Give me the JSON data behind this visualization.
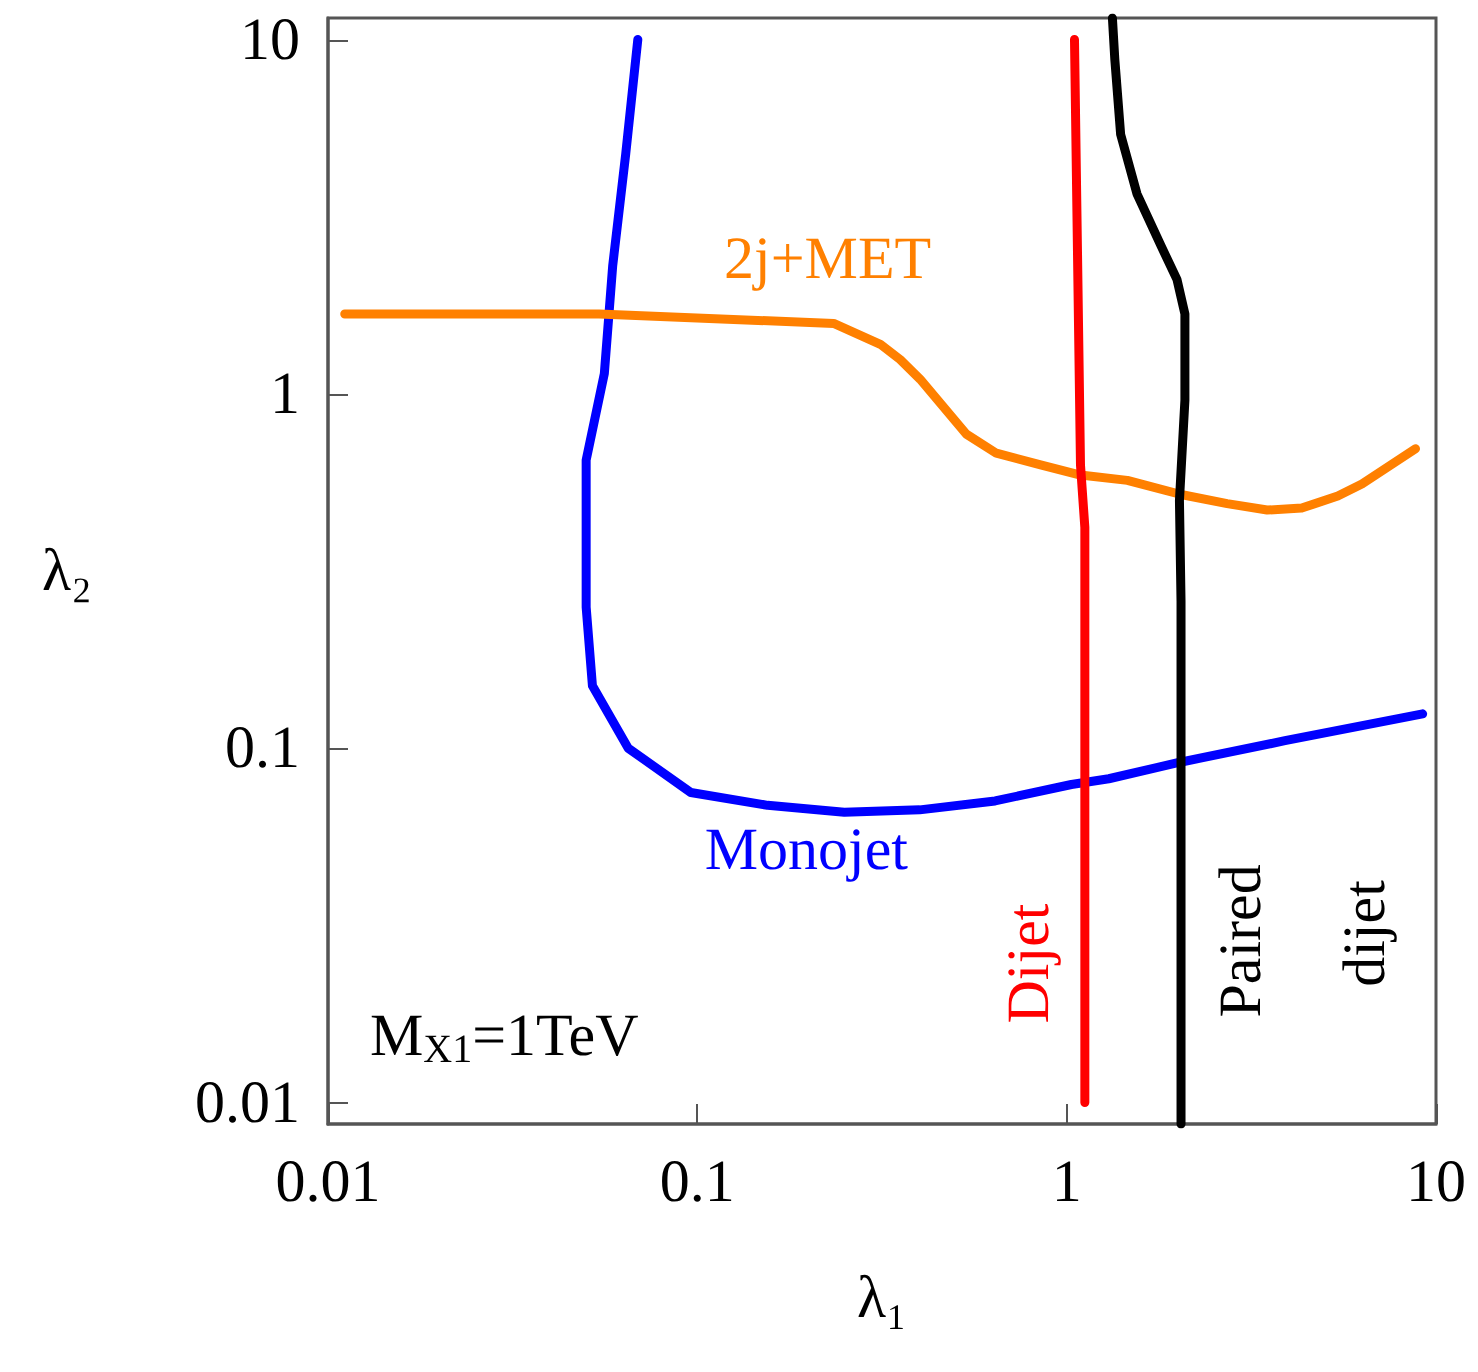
{
  "chart_data": {
    "type": "line",
    "xlabel": "λ₁",
    "ylabel": "λ₂",
    "log": "xy",
    "xlim": [
      0.01,
      10
    ],
    "ylim": [
      0.0087,
      11.5
    ],
    "xticks": [
      0.01,
      0.1,
      1,
      10
    ],
    "yticks": [
      0.01,
      0.1,
      1,
      10
    ],
    "grid": false,
    "legend": false,
    "marker": "none",
    "line_style": "solid",
    "annotations": [
      "M$_{X1}$=1TeV"
    ],
    "series": [
      {
        "name": "Monojet",
        "color": "#0000ff",
        "x": [
          0.069,
          0.064,
          0.059,
          0.056,
          0.05,
          0.05,
          0.05,
          0.052,
          0.065,
          0.096,
          0.155,
          0.25,
          0.4,
          0.64,
          1.03,
          1.3,
          2.0,
          3.9,
          9.2
        ],
        "values": [
          10,
          4.76,
          2.3,
          1.14,
          0.65,
          0.4,
          0.25,
          0.15,
          0.1,
          0.075,
          0.069,
          0.066,
          0.067,
          0.071,
          0.079,
          0.082,
          0.091,
          0.105,
          0.125
        ]
      },
      {
        "name": "2j+MET",
        "color": "#ff8000",
        "x": [
          0.0111,
          0.0542,
          0.234,
          0.313,
          0.354,
          0.401,
          0.535,
          0.645,
          0.85,
          1.09,
          1.46,
          2.04,
          2.72,
          3.49,
          4.33,
          5.42,
          6.3,
          8.8
        ],
        "values": [
          1.68,
          1.68,
          1.58,
          1.38,
          1.25,
          1.1,
          0.77,
          0.68,
          0.63,
          0.59,
          0.57,
          0.52,
          0.49,
          0.47,
          0.476,
          0.515,
          0.557,
          0.7
        ]
      },
      {
        "name": "Dijet",
        "color": "#ff0000",
        "x": [
          1.05,
          1.09,
          1.12,
          1.12,
          1.12
        ],
        "values": [
          10,
          0.63,
          0.42,
          0.03,
          0.01
        ]
      },
      {
        "name": "Paired dijet",
        "color": "#000000",
        "x": [
          1.33,
          1.35,
          1.4,
          1.55,
          1.8,
          1.99,
          2.09,
          2.09,
          2.02,
          2.04,
          2.04,
          2.04
        ],
        "values": [
          11.5,
          8.8,
          5.4,
          3.67,
          2.62,
          2.1,
          1.68,
          0.96,
          0.5,
          0.26,
          0.03,
          0.0087
        ]
      }
    ]
  }
}
